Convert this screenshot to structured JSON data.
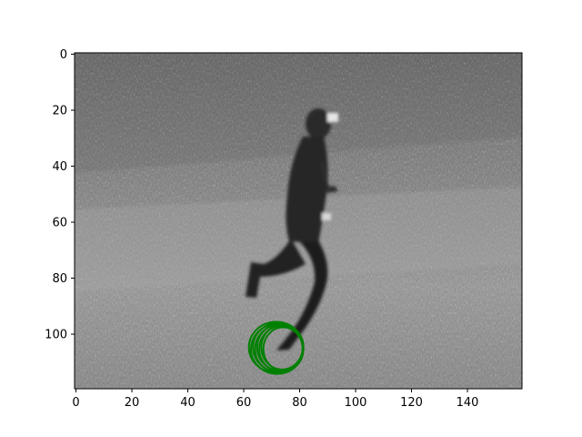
{
  "figure": {
    "background": "#ffffff",
    "image_description_hidden": false
  },
  "axes": {
    "x_ticks": [
      0,
      20,
      40,
      60,
      80,
      100,
      120,
      140
    ],
    "y_ticks": [
      0,
      20,
      40,
      60,
      80,
      100
    ],
    "xlim": [
      -0.5,
      159.5
    ],
    "ylim": [
      119.5,
      -0.5
    ],
    "y_inverted": true,
    "grid": false
  },
  "image": {
    "colormap": "gray",
    "subject": "person-running"
  },
  "overlay": {
    "shape": "concentric-ellipses",
    "color": "#008000",
    "center": [
      73,
      105
    ],
    "count": 8
  }
}
